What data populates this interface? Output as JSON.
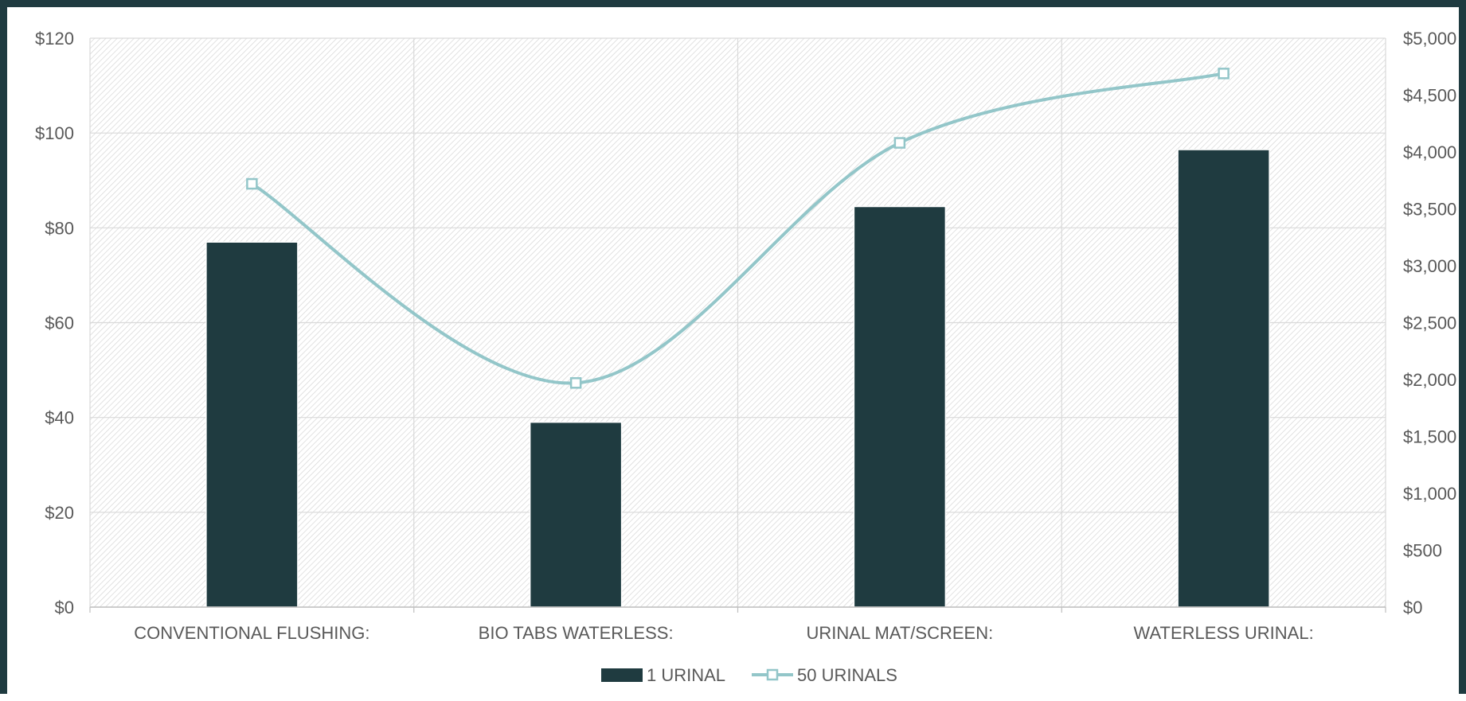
{
  "chart_data": {
    "type": "bar",
    "categories": [
      "CONVENTIONAL FLUSHING:",
      "BIO TABS WATERLESS:",
      "URINAL MAT/SCREEN:",
      "WATERLESS URINAL:"
    ],
    "series": [
      {
        "name": "1 URINAL",
        "type": "bar",
        "axis": "left",
        "values": [
          77,
          39,
          84.5,
          96.5
        ],
        "color": "#1f3b40"
      },
      {
        "name": "50 URINALS",
        "type": "line",
        "smooth": true,
        "marker": "square",
        "axis": "right",
        "values": [
          3720,
          1970,
          4080,
          4690
        ],
        "color": "#93c6c9"
      }
    ],
    "y_left": {
      "ylim": [
        0,
        120
      ],
      "ticks": [
        "$0",
        "$20",
        "$40",
        "$60",
        "$80",
        "$100",
        "$120"
      ]
    },
    "y_right": {
      "ylim": [
        0,
        5000
      ],
      "ticks": [
        "$0",
        "$500",
        "$1,000",
        "$1,500",
        "$2,000",
        "$2,500",
        "$3,000",
        "$3,500",
        "$4,000",
        "$4,500",
        "$5,000"
      ]
    },
    "grid": true,
    "legend": "bottom-center",
    "plot_background": "hatched"
  }
}
